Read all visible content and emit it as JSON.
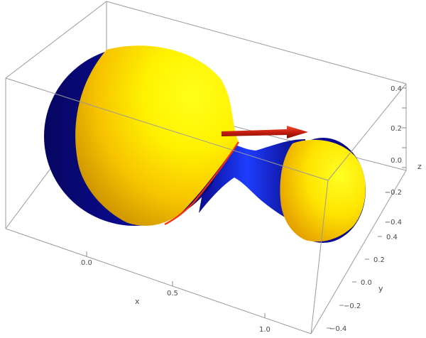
{
  "plot": {
    "type": "3d-surface",
    "colors": {
      "outer_surface": "#ffe600",
      "inner_surface": "#0a0a8c",
      "neck_highlight": "#1a3cff",
      "rim": "#ff2a00",
      "arrow": "#d42a14",
      "box": "#9a9a9a"
    },
    "axes": {
      "x": {
        "label": "x",
        "ticks": [
          "0.0",
          "0.5",
          "1.0"
        ]
      },
      "y": {
        "label": "y",
        "ticks": [
          "0.4",
          "0.2",
          "0.0",
          "−0.2",
          "−0.4"
        ]
      },
      "z": {
        "label": "z",
        "ticks": [
          "0.4",
          "0.2",
          "0.0",
          "−0.2",
          "−0.4"
        ]
      }
    }
  }
}
